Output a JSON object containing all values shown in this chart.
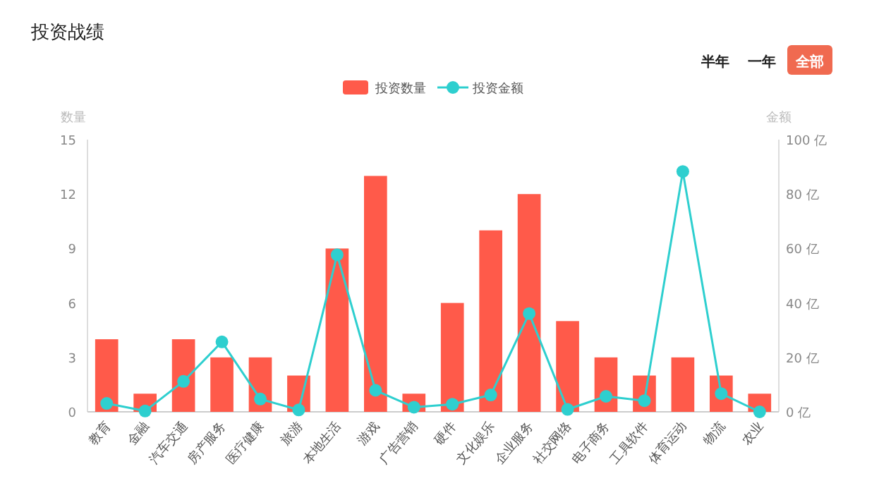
{
  "chart_data": {
    "type": "bar",
    "title": "投资战绩",
    "ylabel": "数量",
    "y2label": "金额",
    "annotations": [
      "半年",
      "一年",
      "全部"
    ],
    "categories": [
      "教育",
      "金融",
      "汽车交通",
      "房产服务",
      "医疗健康",
      "旅游",
      "本地生活",
      "游戏",
      "广告营销",
      "硬件",
      "文化娱乐",
      "企业服务",
      "社交网络",
      "电子商务",
      "工具软件",
      "体育运动",
      "物流",
      "农业"
    ],
    "series": [
      {
        "name": "投资数量",
        "color": "#ff5a4a",
        "values": [
          4,
          1,
          4,
          3,
          3,
          2,
          9,
          13,
          1,
          6,
          10,
          12,
          5,
          3,
          2,
          3,
          2,
          1
        ]
      },
      {
        "name": "投资金额",
        "type": "line",
        "axis": "y2",
        "color": "#2ecfcf",
        "values": [
          3.1,
          0.3,
          11.2,
          25.7,
          4.7,
          0.7,
          57.7,
          7.9,
          1.7,
          2.8,
          6.2,
          36.1,
          0.9,
          5.7,
          4.1,
          88.3,
          6.7,
          0
        ]
      }
    ],
    "ylim": [
      0,
      15
    ],
    "yticks": [
      0,
      3,
      6,
      9,
      12,
      15
    ],
    "y2lim": [
      0,
      100
    ],
    "y2ticks": [
      {
        "value": 0,
        "label": "0 亿"
      },
      {
        "value": 20,
        "label": "20 亿"
      },
      {
        "value": 40,
        "label": "40 亿"
      },
      {
        "value": 60,
        "label": "60 亿"
      },
      {
        "value": 80,
        "label": "80 亿"
      },
      {
        "value": 100,
        "label": "100 亿"
      }
    ],
    "marker": "circle",
    "legend": "top",
    "grid": false
  }
}
